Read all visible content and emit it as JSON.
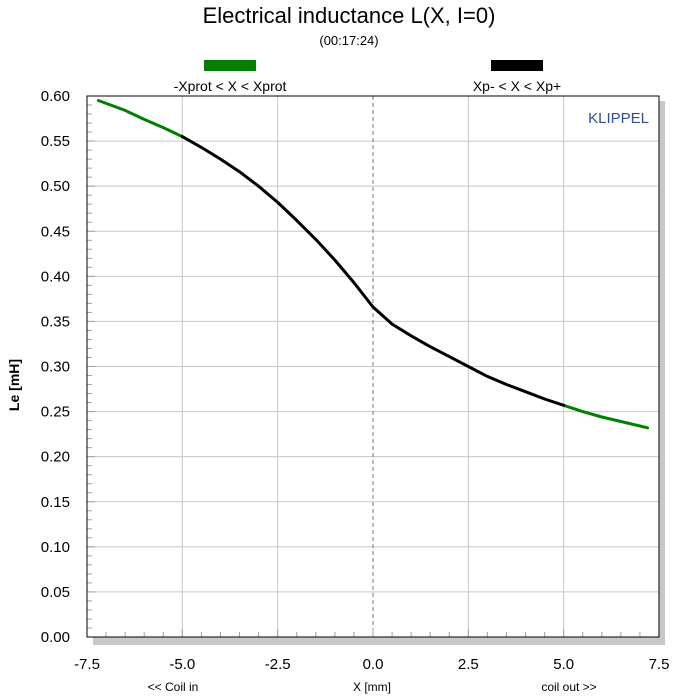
{
  "chart_data": {
    "type": "line",
    "title": "Electrical inductance L(X, I=0)",
    "subtitle": "(00:17:24)",
    "xlabel": "X [mm]",
    "ylabel": "Le [mH]",
    "x_left_label": "<< Coil in",
    "x_right_label": "coil out >>",
    "brand": "KLIPPEL",
    "xlim": [
      -7.5,
      7.5
    ],
    "ylim": [
      0.0,
      0.6
    ],
    "x_ticks": [
      -7.5,
      -5.0,
      -2.5,
      0.0,
      2.5,
      5.0,
      7.5
    ],
    "x_tick_labels": [
      "-7.5",
      "-5.0",
      "-2.5",
      "0.0",
      "2.5",
      "5.0",
      "7.5"
    ],
    "y_ticks": [
      0.0,
      0.05,
      0.1,
      0.15,
      0.2,
      0.25,
      0.3,
      0.35,
      0.4,
      0.45,
      0.5,
      0.55,
      0.6
    ],
    "y_tick_labels": [
      "0.00",
      "0.05",
      "0.10",
      "0.15",
      "0.20",
      "0.25",
      "0.30",
      "0.35",
      "0.40",
      "0.45",
      "0.50",
      "0.55",
      "0.60"
    ],
    "grid": true,
    "legend_position": "top",
    "series": [
      {
        "name": "-Xprot < X < Xprot",
        "color": "#008000",
        "segments": [
          {
            "x": [
              -7.2,
              -6.5,
              -6.0,
              -5.5,
              -5.0
            ],
            "y": [
              0.595,
              0.584,
              0.574,
              0.565,
              0.555
            ]
          },
          {
            "x": [
              5.0,
              5.5,
              6.0,
              6.5,
              7.0,
              7.2
            ],
            "y": [
              0.257,
              0.25,
              0.244,
              0.239,
              0.234,
              0.232
            ]
          }
        ]
      },
      {
        "name": "Xp- < X < Xp+",
        "color": "#000000",
        "segments": [
          {
            "x": [
              -5.0,
              -4.5,
              -4.0,
              -3.5,
              -3.0,
              -2.5,
              -2.0,
              -1.5,
              -1.0,
              -0.5,
              0.0,
              0.5,
              1.0,
              1.5,
              2.0,
              2.5,
              3.0,
              3.5,
              4.0,
              4.5,
              5.0
            ],
            "y": [
              0.555,
              0.543,
              0.53,
              0.516,
              0.5,
              0.482,
              0.462,
              0.441,
              0.418,
              0.393,
              0.366,
              0.347,
              0.334,
              0.322,
              0.311,
              0.3,
              0.289,
              0.28,
              0.272,
              0.264,
              0.257
            ]
          }
        ]
      }
    ]
  }
}
